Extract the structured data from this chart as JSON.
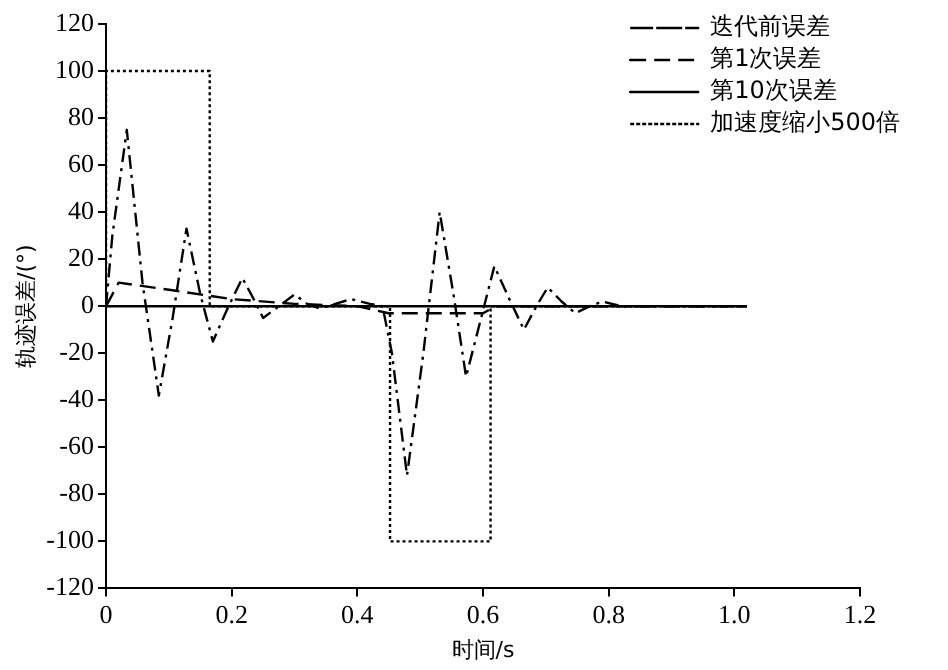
{
  "chart_data": {
    "type": "line",
    "xlabel": "时间/s",
    "ylabel": "轨迹误差/(°)",
    "xlim": [
      0,
      1.2
    ],
    "xticks": [
      0,
      {
        "value": 0.2,
        "label": "0.2"
      },
      {
        "value": 0.4,
        "label": "0.4"
      },
      {
        "value": 0.6,
        "label": "0.6"
      },
      {
        "value": 0.8,
        "label": "0.8"
      },
      {
        "value": 1,
        "label": "1.0"
      },
      {
        "value": 1.2,
        "label": "1.2"
      }
    ],
    "ylim": [
      -120,
      120
    ],
    "yticks": [
      -120,
      -100,
      -80,
      -60,
      -40,
      -20,
      0,
      20,
      40,
      60,
      80,
      100,
      120
    ],
    "grid": false,
    "legend": "top right",
    "marker": "none",
    "series": [
      {
        "name": "迭代前误差",
        "color": "#000000",
        "line_style": "dashdot",
        "x": [
          0,
          0.01,
          0.033,
          0.058,
          0.084,
          0.106,
          0.128,
          0.15,
          0.17,
          0.195,
          0.217,
          0.235,
          0.25,
          0.275,
          0.3,
          0.32,
          0.34,
          0.365,
          0.39,
          0.42,
          0.44,
          0.455,
          0.479,
          0.505,
          0.531,
          0.553,
          0.573,
          0.597,
          0.618,
          0.642,
          0.665,
          0.685,
          0.703,
          0.725,
          0.747,
          0.77,
          0.79,
          0.82,
          1.02
        ],
        "values": [
          0,
          30,
          75,
          10,
          -38,
          -5,
          33,
          5,
          -15,
          0,
          12,
          3,
          -5,
          0,
          5,
          1,
          -1,
          1,
          3,
          1,
          0,
          -20,
          -72,
          -20,
          40,
          5,
          -30,
          -5,
          17,
          3,
          -10,
          0,
          8,
          2,
          -3,
          0,
          2,
          0,
          0
        ]
      },
      {
        "name": "第1次误差",
        "color": "#000000",
        "line_style": "dashed",
        "x": [
          0,
          0.02,
          0.1,
          0.2,
          0.3,
          0.4,
          0.45,
          0.5,
          0.6,
          0.62,
          0.7,
          1.02
        ],
        "values": [
          0,
          10,
          7,
          3,
          1,
          0,
          -3,
          -3,
          -3,
          0,
          0,
          0
        ]
      },
      {
        "name": "第10次误差",
        "color": "#000000",
        "line_style": "solid",
        "x": [
          0,
          1.02
        ],
        "values": [
          0,
          0
        ]
      },
      {
        "name": "加速度缩小500倍",
        "color": "#000000",
        "line_style": "dotted",
        "x": [
          0,
          0,
          0.165,
          0.165,
          0.452,
          0.452,
          0.612,
          0.612,
          1.02
        ],
        "values": [
          0,
          100,
          100,
          0,
          0,
          -100,
          -100,
          0,
          0
        ]
      }
    ]
  }
}
